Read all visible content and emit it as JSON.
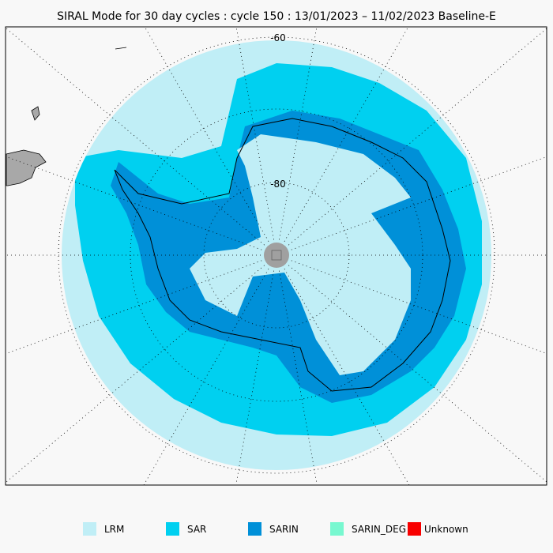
{
  "title": "SIRAL Mode for 30 day cycles : cycle 150 : 13/01/2023 – 11/02/2023 Baseline-E",
  "map": {
    "lat_labels": [
      "-60",
      "-80"
    ],
    "colors": {
      "background": "#f8f8f8",
      "land": "#a8a8a8",
      "pole_hole": "#a0a0a0"
    }
  },
  "legend": [
    {
      "label": "LRM",
      "color": "#c0eef6"
    },
    {
      "label": "SAR",
      "color": "#00d0f0"
    },
    {
      "label": "SARIN",
      "color": "#0090d8"
    },
    {
      "label": "SARIN_DEG",
      "color": "#78f8d0"
    },
    {
      "label": "Unknown",
      "color": "#f80000"
    }
  ]
}
